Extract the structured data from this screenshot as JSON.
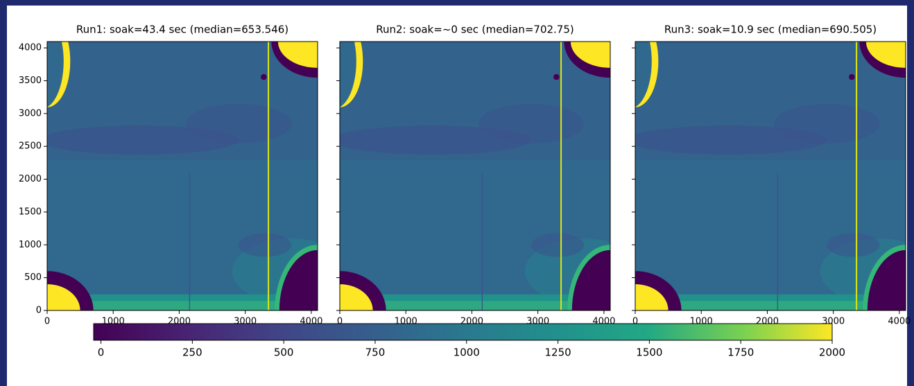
{
  "chart_data": [
    {
      "type": "heatmap",
      "title": "Run1: soak=43.4 sec (median=653.546)",
      "xlim": [
        0,
        4096
      ],
      "ylim": [
        0,
        4096
      ],
      "xticks": [
        0,
        1000,
        2000,
        3000,
        4000
      ],
      "yticks": [
        0,
        500,
        1000,
        1500,
        2000,
        2500,
        3000,
        3500,
        4000
      ]
    },
    {
      "type": "heatmap",
      "title": "Run2: soak=~0 sec (median=702.75)",
      "xlim": [
        0,
        4096
      ],
      "ylim": [
        0,
        4096
      ],
      "xticks": [
        0,
        1000,
        2000,
        3000,
        4000
      ]
    },
    {
      "type": "heatmap",
      "title": "Run3: soak=10.9 sec (median=690.505)",
      "xlim": [
        0,
        4096
      ],
      "ylim": [
        0,
        4096
      ],
      "xticks": [
        0,
        1000,
        2000,
        3000,
        4000
      ]
    }
  ],
  "colorbar": {
    "clim": [
      -20,
      2000
    ],
    "ticks": [
      0,
      250,
      500,
      750,
      1000,
      1250,
      1500,
      1750,
      2000
    ]
  }
}
